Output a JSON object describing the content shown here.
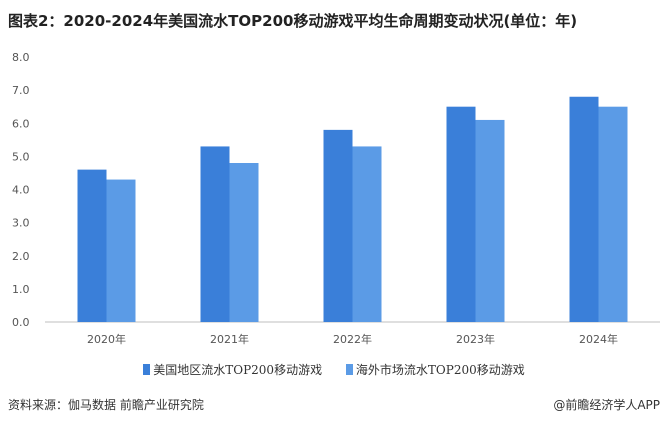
{
  "chart_data": {
    "type": "bar",
    "title": "图表2：2020-2024年美国流水TOP200移动游戏平均生命周期变动状况(单位：年)",
    "categories": [
      "2020年",
      "2021年",
      "2022年",
      "2023年",
      "2024年"
    ],
    "series": [
      {
        "name": "美国地区流水TOP200移动游戏",
        "values": [
          4.6,
          5.3,
          5.8,
          6.5,
          6.8
        ],
        "color": "#3a7fd9"
      },
      {
        "name": "海外市场流水TOP200移动游戏",
        "values": [
          4.3,
          4.8,
          5.3,
          6.1,
          6.5
        ],
        "color": "#5b9be6"
      }
    ],
    "yticks": [
      "0.0",
      "1.0",
      "2.0",
      "3.0",
      "4.0",
      "5.0",
      "6.0",
      "7.0",
      "8.0"
    ],
    "ylim": [
      0,
      8
    ],
    "grid": false,
    "legend_position": "bottom"
  },
  "footer": {
    "source": "资料来源：伽马数据 前瞻产业研究院",
    "brand": "@前瞻经济学人APP"
  }
}
